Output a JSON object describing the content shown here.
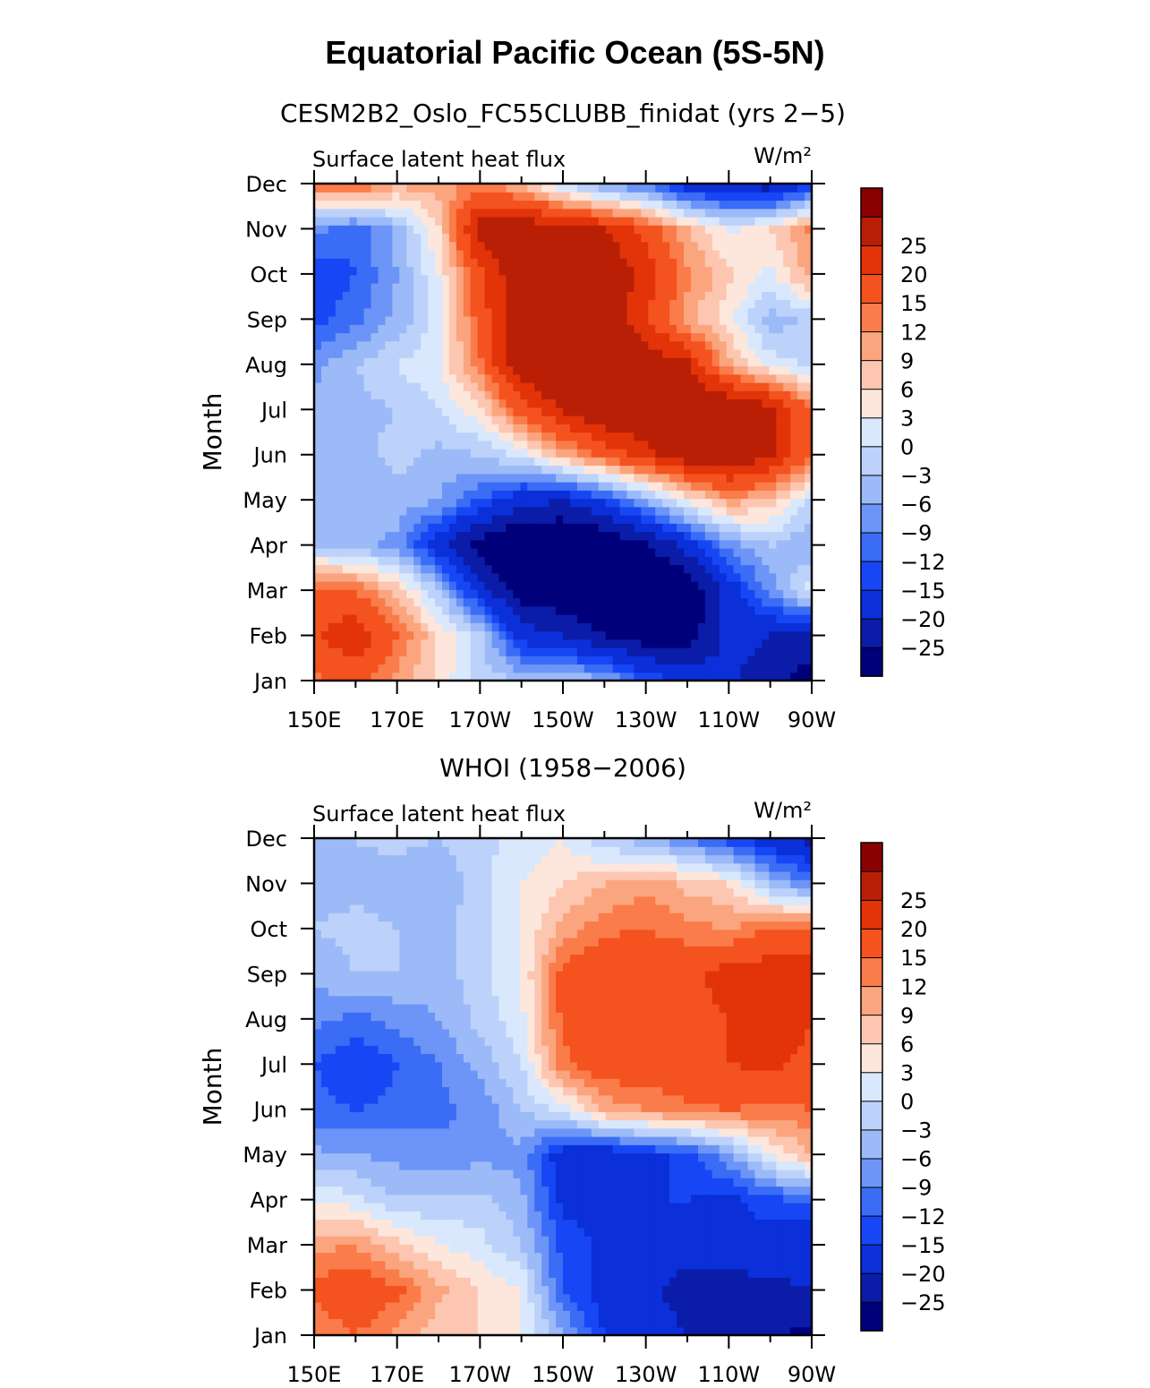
{
  "title": "Equatorial Pacific Ocean (5S-5N)",
  "colors": [
    "#00007a",
    "#0a1ca8",
    "#0b2fd8",
    "#1747f5",
    "#3a6cf6",
    "#6c95f7",
    "#9cbaf8",
    "#bcd2fa",
    "#d9e8fc",
    "#fde6dc",
    "#fcc6b0",
    "#fba57f",
    "#fa7c4a",
    "#f4521e",
    "#e23309",
    "#b91f04",
    "#8b0000"
  ],
  "chart_data": [
    {
      "type": "heatmap",
      "title": "CESM2B2_Oslo_FC55CLUBB_finidat (yrs 2−5)",
      "left_string": "Surface latent heat flux",
      "units": "W/m²",
      "ylabel": "Month",
      "x_ticks": [
        "150E",
        "170E",
        "170W",
        "150W",
        "130W",
        "110W",
        "90W"
      ],
      "y_ticks": [
        "Jan",
        "Feb",
        "Mar",
        "Apr",
        "May",
        "Jun",
        "Jul",
        "Aug",
        "Sep",
        "Oct",
        "Nov",
        "Dec"
      ],
      "levels": [
        "−25",
        "−20",
        "−15",
        "−12",
        "−9",
        "−6",
        "−3",
        "0",
        "3",
        "6",
        "9",
        "12",
        "15",
        "20",
        "25"
      ],
      "level_values": [
        -25,
        -20,
        -15,
        -12,
        -9,
        -6,
        -3,
        0,
        3,
        6,
        9,
        12,
        15,
        20,
        25
      ],
      "grid": false,
      "legend": "right",
      "x": [
        150,
        160,
        170,
        180,
        190,
        200,
        210,
        220,
        230,
        240,
        250,
        260,
        270
      ],
      "y": [
        1,
        2,
        3,
        4,
        5,
        6,
        7,
        8,
        9,
        10,
        11,
        12
      ],
      "z": [
        [
          14,
          16,
          11,
          5,
          -1,
          -3,
          -3,
          -5,
          -12,
          -16,
          -19,
          -23,
          -28
        ],
        [
          19,
          24,
          15,
          6,
          -2,
          -17,
          -20,
          -25,
          -28,
          -28,
          -18,
          -20,
          -22
        ],
        [
          17,
          15,
          8,
          -3,
          -18,
          -28,
          -30,
          -31,
          -32,
          -30,
          -18,
          -8,
          2
        ],
        [
          -3,
          -5,
          -7,
          -18,
          -28,
          -32,
          -32,
          -31,
          -26,
          -18,
          -8,
          -3,
          -6
        ],
        [
          -4,
          -6,
          -4,
          -6,
          -12,
          -18,
          -20,
          -14,
          -6,
          3,
          11,
          8,
          -1
        ],
        [
          -5,
          -4,
          -2,
          -4,
          -3,
          1,
          9,
          16,
          23,
          29,
          30,
          26,
          15
        ],
        [
          -5,
          -4,
          -3,
          0,
          5,
          17,
          26,
          31,
          32,
          32,
          31,
          28,
          14
        ],
        [
          -7,
          -3,
          0,
          3,
          14,
          30,
          32,
          32,
          30,
          26,
          10,
          2,
          -1
        ],
        [
          -13,
          -10,
          -5,
          1,
          17,
          29,
          32,
          30,
          20,
          10,
          4,
          -5,
          -2
        ],
        [
          -15,
          -12,
          -6,
          3,
          19,
          30,
          32,
          31,
          23,
          13,
          7,
          2,
          11
        ],
        [
          -8,
          -11,
          -5,
          6,
          28,
          30,
          28,
          25,
          18,
          9,
          2,
          6,
          13
        ],
        [
          14,
          16,
          10,
          11,
          12,
          9,
          -1,
          -7,
          -10,
          -18,
          -20,
          -23,
          -15
        ]
      ]
    },
    {
      "type": "heatmap",
      "title": "WHOI (1958−2006)",
      "left_string": "Surface latent heat flux",
      "units": "W/m²",
      "ylabel": "Month",
      "x_ticks": [
        "150E",
        "170E",
        "170W",
        "150W",
        "130W",
        "110W",
        "90W"
      ],
      "y_ticks": [
        "Jan",
        "Feb",
        "Mar",
        "Apr",
        "May",
        "Jun",
        "Jul",
        "Aug",
        "Sep",
        "Oct",
        "Nov",
        "Dec"
      ],
      "levels": [
        "−25",
        "−20",
        "−15",
        "−12",
        "−9",
        "−6",
        "−3",
        "0",
        "3",
        "6",
        "9",
        "12",
        "15",
        "20",
        "25"
      ],
      "level_values": [
        -25,
        -20,
        -15,
        -12,
        -9,
        -6,
        -3,
        0,
        3,
        6,
        9,
        12,
        15,
        20,
        25
      ],
      "grid": false,
      "legend": "right",
      "x": [
        150,
        160,
        170,
        180,
        190,
        200,
        210,
        220,
        230,
        240,
        250,
        260,
        270
      ],
      "y": [
        1,
        2,
        3,
        4,
        5,
        6,
        7,
        8,
        9,
        10,
        11,
        12
      ],
      "z": [
        [
          12,
          15,
          11,
          7,
          6,
          3,
          -5,
          -15,
          -17,
          -20,
          -22,
          -25,
          -26
        ],
        [
          16,
          19,
          16,
          10,
          6,
          3,
          -12,
          -17,
          -19,
          -22,
          -23,
          -21,
          -20
        ],
        [
          11,
          12,
          7,
          3,
          1,
          -3,
          -13,
          -16,
          -16,
          -18,
          -16,
          -17,
          -19
        ],
        [
          3,
          1,
          -3,
          -2,
          -2,
          -5,
          -16,
          -17,
          -15,
          -15,
          -16,
          -13,
          -11
        ],
        [
          -5,
          -6,
          -7,
          -8,
          -7,
          -7,
          -18,
          -19,
          -16,
          -14,
          -7,
          3,
          9
        ],
        [
          -11,
          -12,
          -11,
          -10,
          -8,
          -3,
          1,
          10,
          12,
          14,
          15,
          14,
          15
        ],
        [
          -12,
          -15,
          -12,
          -9,
          -5,
          0,
          14,
          18,
          18,
          19,
          20,
          21,
          19
        ],
        [
          -8,
          -10,
          -8,
          -6,
          -2,
          2,
          16,
          19,
          20,
          18,
          20,
          22,
          20
        ],
        [
          -5,
          -3,
          -3,
          -5,
          -1,
          3,
          17,
          20,
          20,
          19,
          22,
          23,
          24
        ],
        [
          -3,
          -2,
          -3,
          -4,
          -1,
          3,
          10,
          14,
          15,
          13,
          12,
          15,
          16
        ],
        [
          -4,
          -4,
          -5,
          -6,
          -1,
          3,
          6,
          9,
          11,
          8,
          6,
          -4,
          -9
        ],
        [
          -5,
          -3,
          -2,
          -3,
          -1,
          1,
          3,
          -3,
          -5,
          -9,
          -14,
          -18,
          -22
        ]
      ]
    }
  ]
}
